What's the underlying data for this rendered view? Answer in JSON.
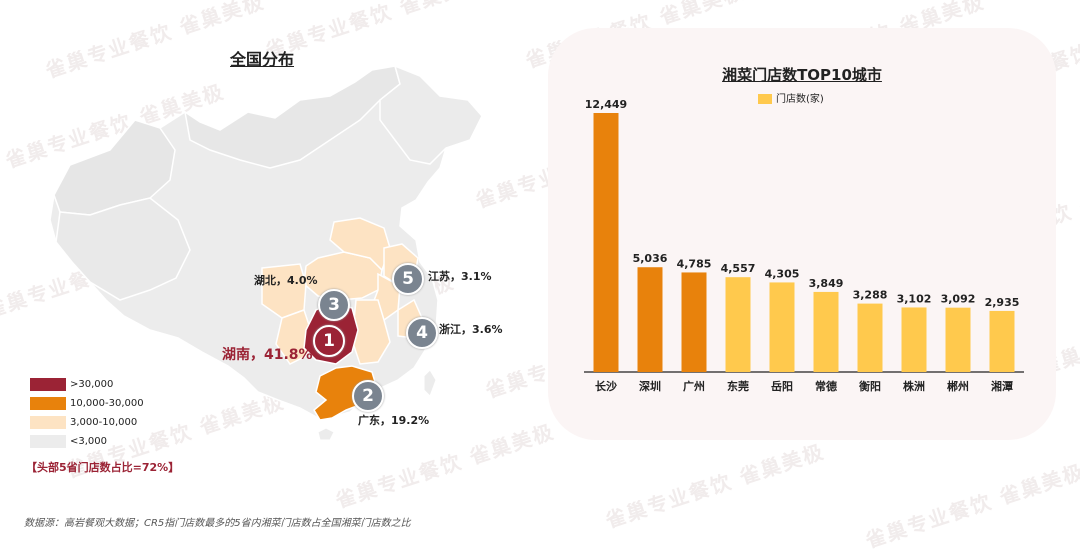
{
  "watermark": "雀巢专业餐饮 雀巢美极",
  "map": {
    "title": "全国分布",
    "provinces": [
      {
        "name": "湖南",
        "label": "湖南，41.8%",
        "rank": "1",
        "share": 41.8,
        "tier": ">30,000"
      },
      {
        "name": "广东",
        "label": "广东，19.2%",
        "rank": "2",
        "share": 19.2,
        "tier": "10,000-30,000"
      },
      {
        "name": "湖北",
        "label": "湖北，4.0%",
        "rank": "3",
        "share": 4.0,
        "tier": "3,000-10,000"
      },
      {
        "name": "浙江",
        "label": "浙江，3.6%",
        "rank": "4",
        "share": 3.6,
        "tier": "3,000-10,000"
      },
      {
        "name": "江苏",
        "label": "江苏，3.1%",
        "rank": "5",
        "share": 3.1,
        "tier": "3,000-10,000"
      }
    ],
    "legend": [
      {
        "label": ">30,000",
        "color": "#9b2335"
      },
      {
        "label": "10,000-30,000",
        "color": "#e8820c"
      },
      {
        "label": "3,000-10,000",
        "color": "#fde3c3"
      },
      {
        "label": "<3,000",
        "color": "#ececec"
      }
    ],
    "note": "【头部5省门店数占比=72%】"
  },
  "chart_data": {
    "type": "bar",
    "title": "湘菜门店数TOP10城市",
    "legend": "门店数(家)",
    "categories": [
      "长沙",
      "深圳",
      "广州",
      "东莞",
      "岳阳",
      "常德",
      "衡阳",
      "株洲",
      "郴州",
      "湘潭"
    ],
    "values": [
      12449,
      5036,
      4785,
      4557,
      4305,
      3849,
      3288,
      3102,
      3092,
      2935
    ],
    "value_labels": [
      "12,449",
      "5,036",
      "4,785",
      "4,557",
      "4,305",
      "3,849",
      "3,288",
      "3,102",
      "3,092",
      "2,935"
    ],
    "colors": [
      "#e8820c",
      "#e8820c",
      "#e8820c",
      "#ffc94d",
      "#ffc94d",
      "#ffc94d",
      "#ffc94d",
      "#ffc94d",
      "#ffc94d",
      "#ffc94d"
    ],
    "ylim": [
      0,
      12449
    ],
    "grid": false
  },
  "source": "数据源：高岩餐观大数据；CR5指门店数最多的5省内湘菜门店数占全国湘菜门店数之比"
}
